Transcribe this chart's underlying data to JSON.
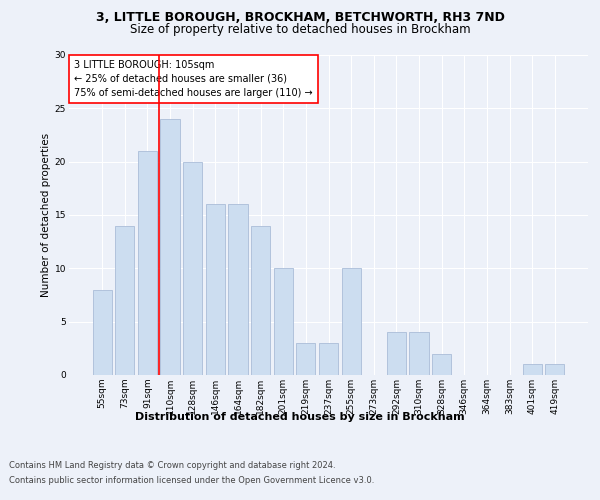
{
  "title1": "3, LITTLE BOROUGH, BROCKHAM, BETCHWORTH, RH3 7ND",
  "title2": "Size of property relative to detached houses in Brockham",
  "xlabel": "Distribution of detached houses by size in Brockham",
  "ylabel": "Number of detached properties",
  "categories": [
    "55sqm",
    "73sqm",
    "91sqm",
    "110sqm",
    "128sqm",
    "146sqm",
    "164sqm",
    "182sqm",
    "201sqm",
    "219sqm",
    "237sqm",
    "255sqm",
    "273sqm",
    "292sqm",
    "310sqm",
    "328sqm",
    "346sqm",
    "364sqm",
    "383sqm",
    "401sqm",
    "419sqm"
  ],
  "values": [
    8,
    14,
    21,
    24,
    20,
    16,
    16,
    14,
    10,
    3,
    3,
    10,
    0,
    4,
    4,
    2,
    0,
    0,
    0,
    1,
    1
  ],
  "bar_color": "#ccddf0",
  "bar_edge_color": "#aabdd8",
  "red_line_index": 3,
  "annotation_lines": [
    "3 LITTLE BOROUGH: 105sqm",
    "← 25% of detached houses are smaller (36)",
    "75% of semi-detached houses are larger (110) →"
  ],
  "ylim": [
    0,
    30
  ],
  "yticks": [
    0,
    5,
    10,
    15,
    20,
    25,
    30
  ],
  "footer1": "Contains HM Land Registry data © Crown copyright and database right 2024.",
  "footer2": "Contains public sector information licensed under the Open Government Licence v3.0.",
  "bg_color": "#edf1f9",
  "plot_bg_color": "#edf1f9",
  "title1_fontsize": 9,
  "title2_fontsize": 8.5,
  "ylabel_fontsize": 7.5,
  "xlabel_fontsize": 8,
  "tick_fontsize": 6.5,
  "annot_fontsize": 7,
  "footer_fontsize": 6
}
